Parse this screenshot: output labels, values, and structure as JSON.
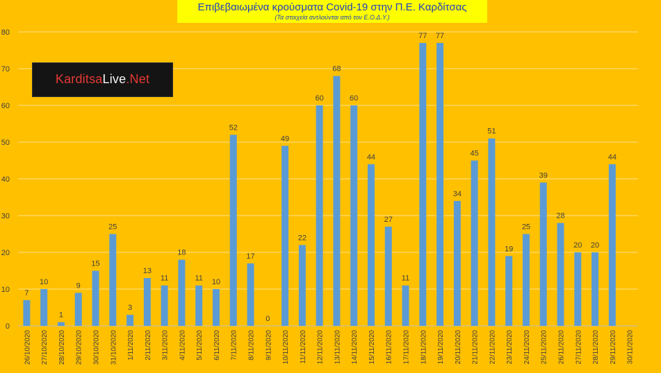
{
  "header": {
    "title": "Επιβεβαιωμένα κρούσματα Covid-19 στην Π.Ε. Καρδίτσας",
    "subtitle": "(Τα στοιχεία αντλούνται από τον Ε.Ο.Δ.Υ.)"
  },
  "logo": {
    "part1": "Karditsa",
    "part2": "Live",
    "part3": ".Net"
  },
  "colors": {
    "background": "#FFC000",
    "bar": "#5B9BD5",
    "grid": "#FFFFFF",
    "title_box": "#FFFF00"
  },
  "chart_data": {
    "type": "bar",
    "title": "Επιβεβαιωμένα κρούσματα Covid-19 στην Π.Ε. Καρδίτσας",
    "subtitle": "(Τα στοιχεία αντλούνται από τον Ε.Ο.Δ.Υ.)",
    "xlabel": "",
    "ylabel": "",
    "ylim": [
      0,
      80
    ],
    "yticks": [
      0,
      10,
      20,
      30,
      40,
      50,
      60,
      70,
      80
    ],
    "grid": true,
    "legend": "none",
    "categories": [
      "26/10/2020",
      "27/10/2020",
      "28/10/2020",
      "29/10/2020",
      "30/10/2020",
      "31/10/2020",
      "1/11/2020",
      "2/11/2020",
      "3/11/2020",
      "4/11/2020",
      "5/11/2020",
      "6/11/2020",
      "7/11/2020",
      "8/11/2020",
      "9/11/2020",
      "10/11/2020",
      "11/11/2020",
      "12/11/2020",
      "13/11/2020",
      "14/11/2020",
      "15/11/2020",
      "16/11/2020",
      "17/11/2020",
      "18/11/2020",
      "19/11/2020",
      "20/11/2020",
      "21/11/2020",
      "22/11/2020",
      "23/11/2020",
      "24/11/2020",
      "25/11/2020",
      "26/11/2020",
      "27/11/2020",
      "28/11/2020",
      "29/11/2020",
      "30/11/2020"
    ],
    "values": [
      7,
      10,
      1,
      9,
      15,
      25,
      3,
      13,
      11,
      18,
      11,
      10,
      52,
      17,
      0,
      49,
      22,
      60,
      68,
      60,
      44,
      27,
      11,
      77,
      77,
      34,
      45,
      51,
      19,
      25,
      39,
      28,
      20,
      20,
      44,
      null
    ],
    "data_labels": [
      "7",
      "10",
      "1",
      "9",
      "15",
      "25",
      "3",
      "13",
      "11",
      "18",
      "11",
      "10",
      "52",
      "17",
      "0",
      "49",
      "22",
      "60",
      "68",
      "60",
      "44",
      "27",
      "11",
      "77",
      "77",
      "34",
      "45",
      "51",
      "19",
      "25",
      "39",
      "28",
      "20",
      "20",
      "44",
      ""
    ]
  }
}
